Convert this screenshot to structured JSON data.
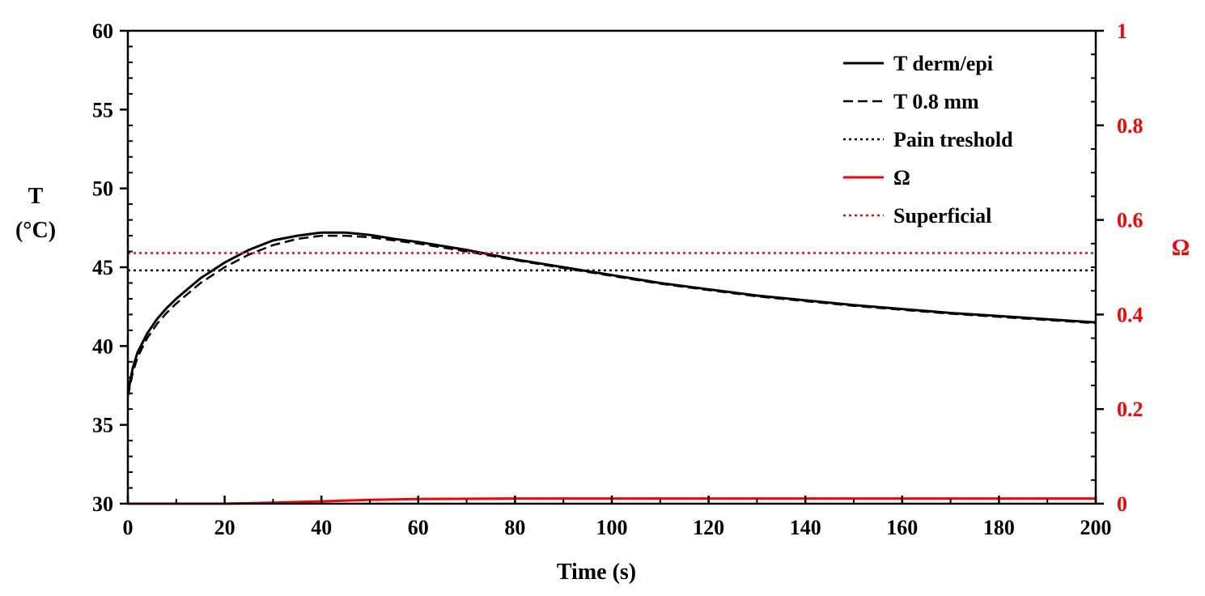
{
  "chart_data": {
    "type": "line",
    "xlabel": "Time (s)",
    "ylabel_left_line1": "T",
    "ylabel_left_line2": "(°C)",
    "ylabel_right": "Ω",
    "xlim": [
      0,
      200
    ],
    "ylim_left": [
      30,
      60
    ],
    "ylim_right": [
      0,
      1
    ],
    "x_ticks": [
      "0",
      "20",
      "40",
      "60",
      "80",
      "100",
      "120",
      "140",
      "160",
      "180",
      "200"
    ],
    "y_left_ticks": [
      "30",
      "35",
      "40",
      "45",
      "50",
      "55",
      "60"
    ],
    "y_right_ticks": [
      "0",
      "0.2",
      "0.4",
      "0.6",
      "0.8",
      "1"
    ],
    "grid": false,
    "legend_position": "top-right",
    "colors": {
      "black": "#000000",
      "red": "#ff0000"
    },
    "series": [
      {
        "name": "T derm/epi",
        "axis": "left",
        "style": "solid",
        "color": "#000000",
        "x": [
          0,
          1,
          2,
          4,
          6,
          8,
          10,
          15,
          20,
          25,
          30,
          35,
          40,
          45,
          50,
          55,
          60,
          70,
          80,
          90,
          100,
          110,
          120,
          130,
          140,
          150,
          160,
          170,
          180,
          190,
          200
        ],
        "y": [
          37.0,
          38.6,
          39.6,
          40.8,
          41.7,
          42.4,
          43.0,
          44.3,
          45.3,
          46.1,
          46.7,
          47.0,
          47.2,
          47.2,
          47.05,
          46.8,
          46.6,
          46.1,
          45.5,
          45.0,
          44.5,
          44.0,
          43.6,
          43.2,
          42.9,
          42.6,
          42.35,
          42.1,
          41.9,
          41.7,
          41.5
        ]
      },
      {
        "name": "T 0.8 mm",
        "axis": "left",
        "style": "dashed",
        "color": "#000000",
        "x": [
          0,
          1,
          2,
          4,
          6,
          8,
          10,
          15,
          20,
          25,
          30,
          35,
          40,
          45,
          50,
          55,
          60,
          70,
          80,
          90,
          100,
          110,
          120,
          130,
          140,
          150,
          160,
          170,
          180,
          190,
          200
        ],
        "y": [
          36.8,
          38.3,
          39.3,
          40.5,
          41.4,
          42.1,
          42.7,
          44.0,
          45.0,
          45.8,
          46.4,
          46.8,
          47.0,
          47.0,
          46.9,
          46.7,
          46.5,
          46.0,
          45.45,
          44.95,
          44.45,
          43.95,
          43.55,
          43.15,
          42.85,
          42.55,
          42.3,
          42.05,
          41.85,
          41.65,
          41.45
        ]
      },
      {
        "name": "Pain treshold",
        "axis": "left",
        "style": "dotted",
        "color": "#000000",
        "x": [
          0,
          200
        ],
        "y": [
          44.8,
          44.8
        ]
      },
      {
        "name": "Ω",
        "axis": "right",
        "style": "solid",
        "color": "#ff0000",
        "x": [
          0,
          20,
          30,
          40,
          50,
          60,
          80,
          100,
          150,
          200
        ],
        "y": [
          0.0,
          0.0,
          0.002,
          0.005,
          0.008,
          0.01,
          0.011,
          0.011,
          0.011,
          0.011
        ]
      },
      {
        "name": "Superficial",
        "axis": "right",
        "style": "dotted",
        "color": "#ff0000",
        "x": [
          0,
          200
        ],
        "y": [
          0.53,
          0.53
        ]
      }
    ]
  }
}
